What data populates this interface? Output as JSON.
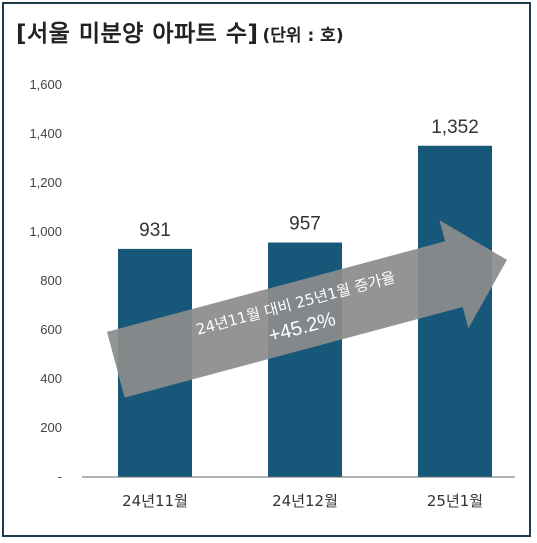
{
  "title": "[서울 미분양 아파트 수]",
  "unit_label": "(단위 : 호)",
  "colors": {
    "bar": "#17587a",
    "arrow": "#8c8c8c",
    "axis": "#666666",
    "border": "#1f3a4a"
  },
  "chart_data": {
    "type": "bar",
    "title": "[서울 미분양 아파트 수]",
    "subtitle": "(단위 : 호)",
    "categories": [
      "24년11월",
      "24년12월",
      "25년1월"
    ],
    "values": [
      931,
      957,
      1352
    ],
    "data_labels": [
      "931",
      "957",
      "1,352"
    ],
    "ylim": [
      0,
      1600
    ],
    "yticks": [
      0,
      200,
      400,
      600,
      800,
      1000,
      1200,
      1400,
      1600
    ],
    "ytick_labels": [
      "-",
      "200",
      "400",
      "600",
      "800",
      "1,000",
      "1,200",
      "1,400",
      "1,600"
    ],
    "grid": false,
    "annotation": {
      "line1": "24년11월 대비 25년1월 증가율",
      "line2": "+45.2%"
    }
  }
}
